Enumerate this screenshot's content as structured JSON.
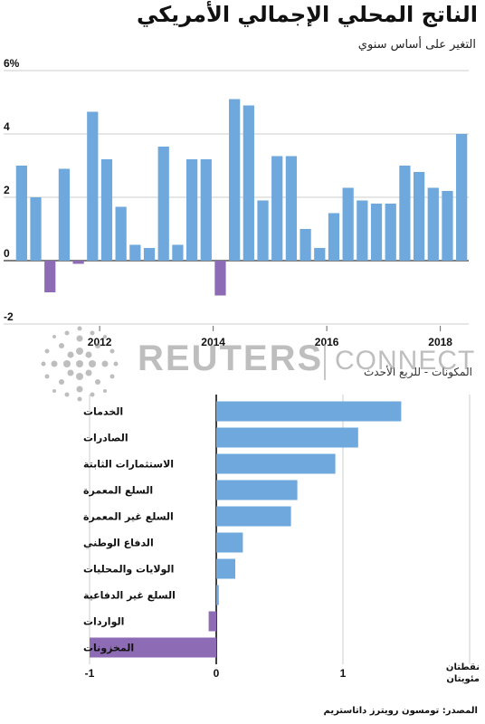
{
  "header": {
    "title": "الناتج المحلي الإجمالي الأمريكي",
    "subtitle": "التغير على أساس سنوي"
  },
  "colors": {
    "positive": "#6fa8dc",
    "negative": "#8e6bb5",
    "grid": "#cccccc",
    "axis": "#000000"
  },
  "chart_data": [
    {
      "type": "bar",
      "title": "",
      "xlabel": "",
      "ylabel": "",
      "ylim": [
        -2,
        6
      ],
      "yticks": [
        "6%",
        "4",
        "2",
        "0",
        "-2"
      ],
      "xticks": [
        "2012",
        "2014",
        "2016",
        "2018"
      ],
      "grid": true,
      "series": [
        {
          "values": [
            3.0,
            2.0,
            -1.0,
            2.9,
            -0.1,
            4.7,
            3.2,
            1.7,
            0.5,
            0.4,
            3.6,
            0.5,
            3.2,
            3.2,
            -1.1,
            5.1,
            4.9,
            1.9,
            3.3,
            3.3,
            1.0,
            0.4,
            1.5,
            2.3,
            1.9,
            1.8,
            1.8,
            3.0,
            2.8,
            2.3,
            2.2,
            4.0
          ]
        }
      ]
    },
    {
      "type": "bar",
      "orientation": "horizontal",
      "title": "المكونات - للربع الأحدث",
      "categories": [
        "الخدمات",
        "الصادرات",
        "الاستثمارات الثابتة",
        "السلع المعمرة",
        "السلع غير المعمرة",
        "الدفاع الوطني",
        "الولايات والمحليات",
        "السلع غير الدفاعية",
        "الواردات",
        "المخزونات"
      ],
      "values": [
        1.46,
        1.12,
        0.94,
        0.64,
        0.59,
        0.21,
        0.15,
        0.02,
        -0.06,
        -1.0
      ],
      "xlim": [
        -1,
        2
      ],
      "xticks": [
        "-1",
        "0",
        "1"
      ],
      "unit_label": [
        "نقطتان",
        "مئويتان"
      ]
    }
  ],
  "source": "المصدر: تومسون رويترز داتاستريم",
  "watermark": {
    "brand": "REUTERS",
    "suffix": "CONNECT"
  }
}
